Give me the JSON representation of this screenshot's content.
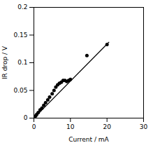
{
  "chart_data": {
    "type": "scatter",
    "xlabel": "Current / mA",
    "ylabel": "IR drop / V",
    "xlim": [
      0,
      30
    ],
    "ylim": [
      0,
      0.2
    ],
    "xticks": [
      0,
      10,
      20,
      30
    ],
    "yticks": [
      0,
      0.05,
      0.1,
      0.15,
      0.2
    ],
    "grid": false,
    "series": [
      {
        "type": "line",
        "color": "black",
        "x": [
          0.0,
          20.5
        ],
        "values": [
          0.0,
          0.137
        ]
      },
      {
        "type": "scatter",
        "color": "black",
        "x": [
          0.2,
          0.5,
          0.8,
          1.2,
          1.7,
          2.2,
          2.7,
          3.2,
          3.8,
          4.3,
          5.0,
          5.5,
          6.0,
          6.5,
          7.0,
          7.5,
          8.0,
          8.5,
          9.0,
          9.5,
          10.0,
          14.5,
          20.0
        ],
        "values": [
          0.001,
          0.004,
          0.007,
          0.01,
          0.015,
          0.018,
          0.023,
          0.028,
          0.033,
          0.038,
          0.044,
          0.05,
          0.056,
          0.06,
          0.063,
          0.065,
          0.068,
          0.068,
          0.066,
          0.068,
          0.07,
          0.113,
          0.133
        ]
      }
    ]
  }
}
